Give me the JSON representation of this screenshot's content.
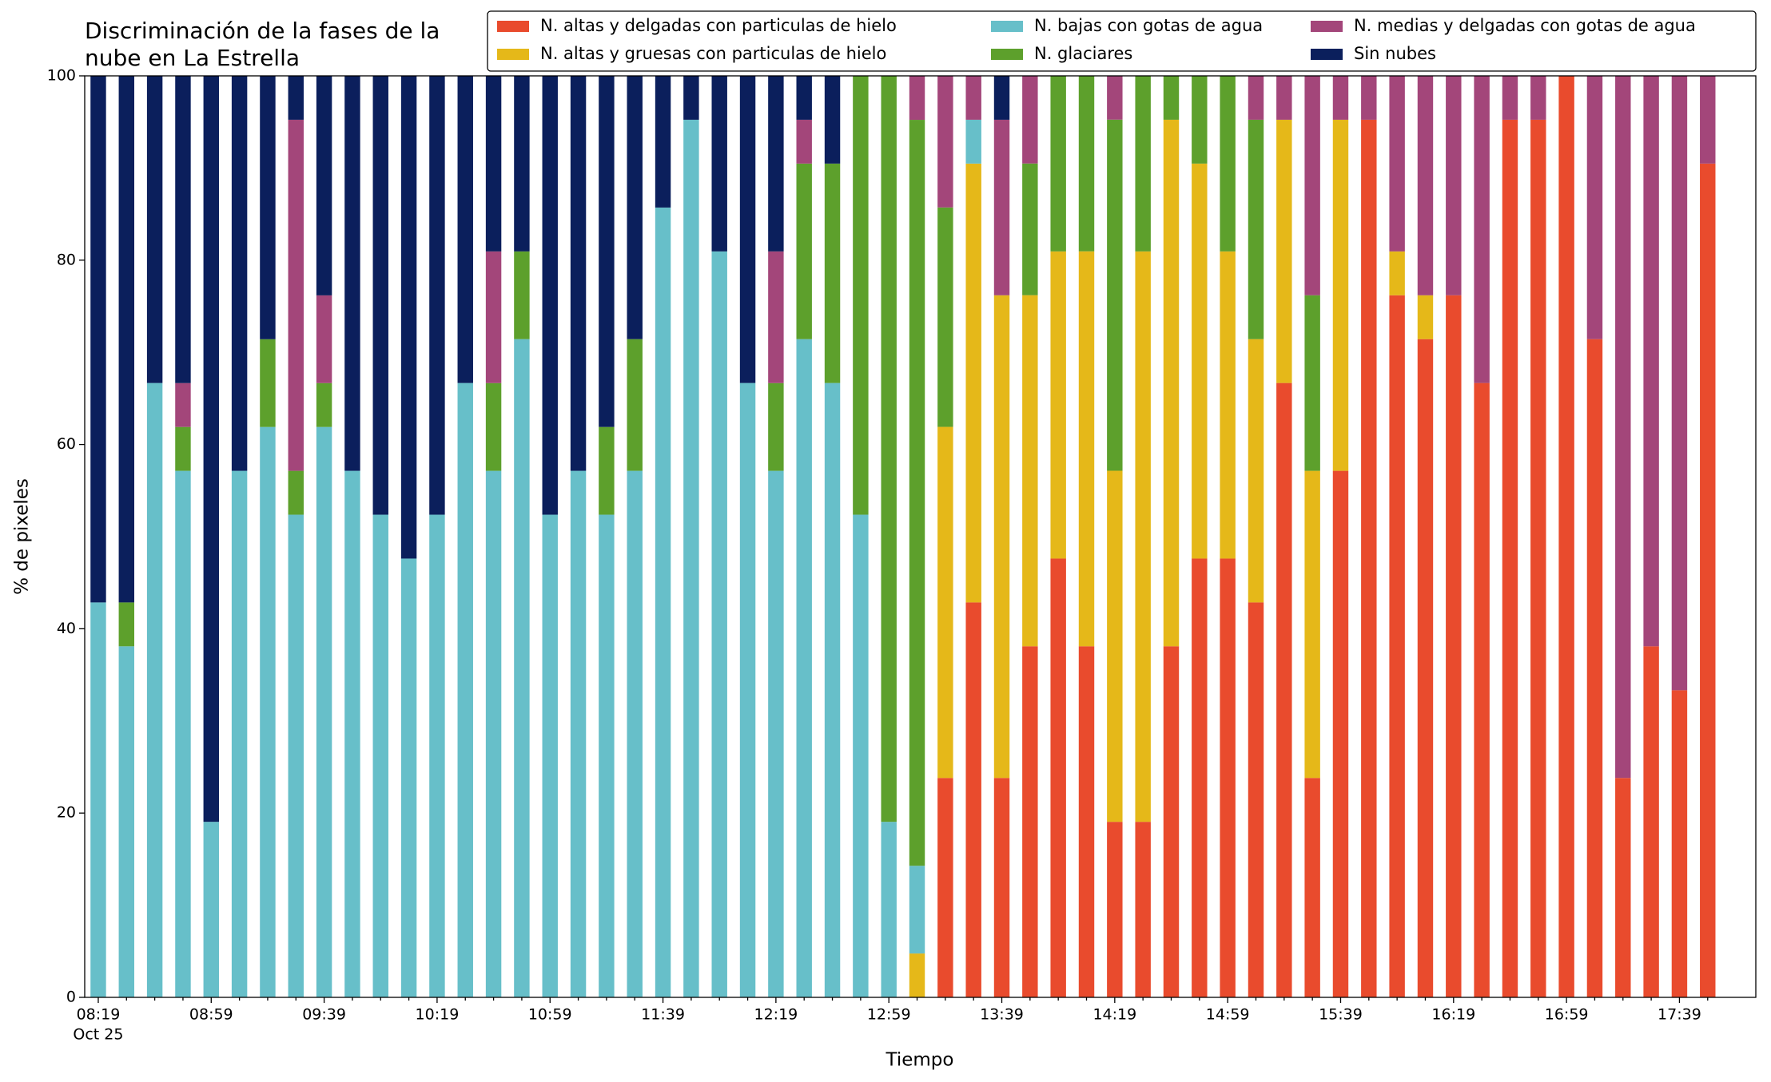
{
  "chart_data": {
    "type": "stacked_bar",
    "title": [
      "Discriminación de la fases de la",
      "nube en La Estrella"
    ],
    "xlabel": "Tiempo",
    "ylabel": "% de pixeles",
    "date_label": "Oct 25",
    "categories": [
      "08:19",
      null,
      null,
      null,
      "08:59",
      null,
      null,
      null,
      "09:39",
      null,
      null,
      null,
      "10:19",
      null,
      null,
      null,
      "10:59",
      null,
      null,
      null,
      "11:39",
      null,
      null,
      null,
      "12:19",
      null,
      null,
      null,
      "12:59",
      null,
      null,
      null,
      "13:39",
      null,
      null,
      null,
      "14:19",
      null,
      null,
      null,
      "14:59",
      null,
      null,
      null,
      "15:39",
      null,
      null,
      null,
      "16:19",
      null,
      null,
      null,
      "16:59",
      null,
      null,
      null,
      "17:39",
      null
    ],
    "ylim": [
      0,
      100
    ],
    "yticks": [
      0,
      20,
      40,
      60,
      80,
      100
    ],
    "series": [
      {
        "name": "N. altas y delgadas con particulas de hielo",
        "color": "#e94b2d",
        "values": [
          0,
          0,
          0,
          0,
          0,
          0,
          0,
          0,
          0,
          0,
          0,
          0,
          0,
          0,
          0,
          0,
          0,
          0,
          0,
          0,
          0,
          0,
          0,
          0,
          0,
          0,
          0,
          0,
          0,
          0,
          23.81,
          42.86,
          23.81,
          38.1,
          47.62,
          38.1,
          19.05,
          19.05,
          38.1,
          47.62,
          47.62,
          42.86,
          66.67,
          23.81,
          57.14,
          95.24,
          76.19,
          71.43,
          76.19,
          66.67,
          95.24,
          95.24,
          100,
          71.43,
          23.81,
          38.1,
          33.33,
          90.48
        ]
      },
      {
        "name": "N. altas y gruesas con particulas de hielo",
        "color": "#e5b819",
        "values": [
          0,
          0,
          0,
          0,
          0,
          0,
          0,
          0,
          0,
          0,
          0,
          0,
          0,
          0,
          0,
          0,
          0,
          0,
          0,
          0,
          0,
          0,
          0,
          0,
          0,
          0,
          0,
          0,
          0,
          4.76,
          38.1,
          47.62,
          52.38,
          38.1,
          33.33,
          42.86,
          38.1,
          61.9,
          57.14,
          42.86,
          33.33,
          28.57,
          28.57,
          33.33,
          38.1,
          0,
          4.76,
          4.76,
          0,
          0,
          0,
          0,
          0,
          0,
          0,
          0,
          0,
          0
        ]
      },
      {
        "name": "N. bajas con gotas de agua",
        "color": "#67bfc9",
        "values": [
          42.86,
          38.1,
          66.67,
          57.14,
          19.05,
          57.14,
          61.9,
          52.38,
          61.9,
          57.14,
          52.38,
          47.62,
          52.38,
          66.67,
          57.14,
          71.43,
          52.38,
          57.14,
          52.38,
          57.14,
          85.71,
          95.24,
          80.95,
          66.67,
          57.14,
          71.43,
          66.67,
          52.38,
          19.05,
          9.52,
          0,
          4.76,
          0,
          0,
          0,
          0,
          0,
          0,
          0,
          0,
          0,
          0,
          0,
          0,
          0,
          0,
          0,
          0,
          0,
          0,
          0,
          0,
          0,
          0,
          0,
          0,
          0,
          0
        ]
      },
      {
        "name": "N. glaciares",
        "color": "#5da02c",
        "values": [
          0,
          4.76,
          0,
          4.76,
          0,
          0,
          9.52,
          4.76,
          4.76,
          0,
          0,
          0,
          0,
          0,
          9.52,
          9.52,
          0,
          0,
          9.52,
          14.29,
          0,
          0,
          0,
          0,
          9.52,
          19.05,
          23.81,
          47.62,
          80.95,
          80.95,
          23.81,
          0,
          0,
          14.29,
          19.05,
          19.05,
          38.1,
          19.05,
          4.76,
          9.52,
          19.05,
          23.81,
          0,
          19.05,
          0,
          0,
          0,
          0,
          0,
          0,
          0,
          0,
          0,
          0,
          0,
          0,
          0,
          0
        ]
      },
      {
        "name": "N. medias y delgadas con gotas de agua",
        "color": "#a3467a",
        "values": [
          0,
          0,
          0,
          4.76,
          0,
          0,
          0,
          38.1,
          9.52,
          0,
          0,
          0,
          0,
          0,
          14.29,
          0,
          0,
          0,
          0,
          0,
          0,
          0,
          0,
          0,
          14.29,
          4.76,
          0,
          0,
          0,
          4.76,
          14.29,
          4.76,
          19.05,
          9.52,
          0,
          0,
          4.76,
          0,
          0,
          0,
          0,
          4.76,
          4.76,
          23.81,
          4.76,
          4.76,
          19.05,
          23.81,
          23.81,
          33.33,
          4.76,
          4.76,
          0,
          28.57,
          76.19,
          61.9,
          66.67,
          9.52
        ]
      },
      {
        "name": "Sin nubes",
        "color": "#0b1f5c",
        "values": [
          57.14,
          57.14,
          33.33,
          33.33,
          80.95,
          42.86,
          28.57,
          4.76,
          23.81,
          42.86,
          47.62,
          52.38,
          47.62,
          33.33,
          19.05,
          19.05,
          47.62,
          42.86,
          38.1,
          28.57,
          14.29,
          4.76,
          19.05,
          33.33,
          19.05,
          4.76,
          9.52,
          0,
          0,
          0,
          0,
          0,
          4.76,
          0,
          0,
          0,
          0,
          0,
          0,
          0,
          0,
          0,
          0,
          0,
          0,
          0,
          0,
          0,
          0,
          0,
          0,
          0,
          0,
          0,
          0,
          0,
          0,
          0
        ]
      }
    ]
  }
}
